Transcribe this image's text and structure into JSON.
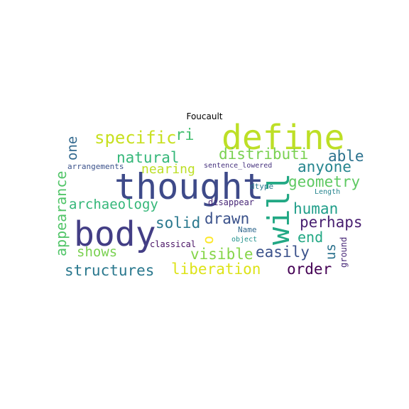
{
  "title": "Foucault",
  "words": [
    {
      "text": "define",
      "color": "#bddf26"
    },
    {
      "text": "thought",
      "color": "#3e4a89"
    },
    {
      "text": "body",
      "color": "#433e85"
    },
    {
      "text": "will",
      "color": "#22a884"
    },
    {
      "text": "specific",
      "color": "#c8e020"
    },
    {
      "text": "ri",
      "color": "#44bf70"
    },
    {
      "text": "natural",
      "color": "#35b779"
    },
    {
      "text": "distributi",
      "color": "#7ad151"
    },
    {
      "text": "able",
      "color": "#2c728e"
    },
    {
      "text": "one",
      "color": "#31688e"
    },
    {
      "text": "nearing",
      "color": "#bddf26"
    },
    {
      "text": "anyone",
      "color": "#25858e"
    },
    {
      "text": "arrangements",
      "color": "#3b528b"
    },
    {
      "text": "sentence_lowered",
      "color": "#46327e"
    },
    {
      "text": "geometry",
      "color": "#5ec962"
    },
    {
      "text": "appearance",
      "color": "#52c569"
    },
    {
      "text": "dtype",
      "color": "#2a788e"
    },
    {
      "text": "Length",
      "color": "#25848e"
    },
    {
      "text": "archaeology",
      "color": "#35b779"
    },
    {
      "text": "disappear",
      "color": "#482878"
    },
    {
      "text": "human",
      "color": "#1f9e89"
    },
    {
      "text": "solid",
      "color": "#2a788e"
    },
    {
      "text": "drawn",
      "color": "#3b528b"
    },
    {
      "text": "perhaps",
      "color": "#481f70"
    },
    {
      "text": "o",
      "color": "#fde725"
    },
    {
      "text": "Name",
      "color": "#31688e"
    },
    {
      "text": "end",
      "color": "#22a884"
    },
    {
      "text": "object",
      "color": "#21918c"
    },
    {
      "text": "classical",
      "color": "#471063"
    },
    {
      "text": "us",
      "color": "#2c728e"
    },
    {
      "text": "shows",
      "color": "#7ad151"
    },
    {
      "text": "visible",
      "color": "#86d549"
    },
    {
      "text": "easily",
      "color": "#3b528b"
    },
    {
      "text": "ground",
      "color": "#482878"
    },
    {
      "text": "structures",
      "color": "#2a788e"
    },
    {
      "text": "liberation",
      "color": "#dde318"
    },
    {
      "text": "order",
      "color": "#440154"
    }
  ]
}
